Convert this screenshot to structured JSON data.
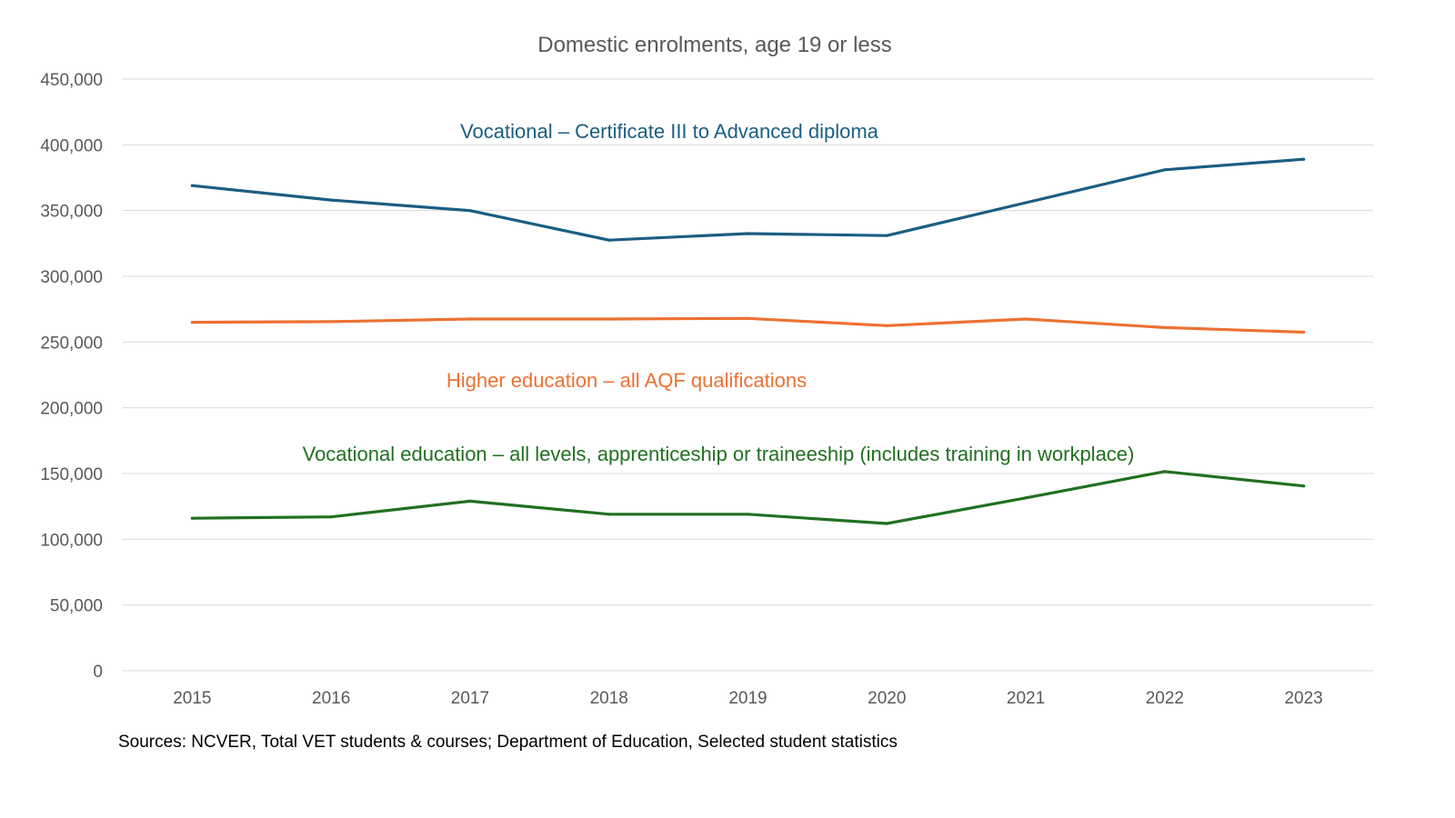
{
  "chart_data": {
    "type": "line",
    "title": "Domestic enrolments, age 19 or less",
    "xlabel": "",
    "ylabel": "",
    "ylim": [
      0,
      450000
    ],
    "yticks": [
      "0",
      "50,000",
      "100,000",
      "150,000",
      "200,000",
      "250,000",
      "300,000",
      "350,000",
      "400,000",
      "450,000"
    ],
    "categories": [
      "2015",
      "2016",
      "2017",
      "2018",
      "2019",
      "2020",
      "2021",
      "2022",
      "2023"
    ],
    "grid": true,
    "series": [
      {
        "name": "Vocational – Certificate III to Advanced diploma",
        "color": "#1b5e82",
        "values": [
          369000,
          358000,
          350000,
          327500,
          332500,
          331000,
          356000,
          381000,
          389000
        ]
      },
      {
        "name": "Higher education – all AQF qualifications",
        "color": "#ed7133",
        "values": [
          265000,
          265500,
          267500,
          267500,
          268000,
          262500,
          267500,
          261000,
          257500
        ]
      },
      {
        "name": "Vocational education – all levels, apprenticeship or traineeship (includes training in workplace)",
        "color": "#217021",
        "values": [
          116000,
          117000,
          129000,
          119000,
          119000,
          112000,
          131500,
          151500,
          140500
        ]
      }
    ],
    "source": "Sources: NCVER, Total VET students & courses; Department of Education, Selected student statistics"
  }
}
